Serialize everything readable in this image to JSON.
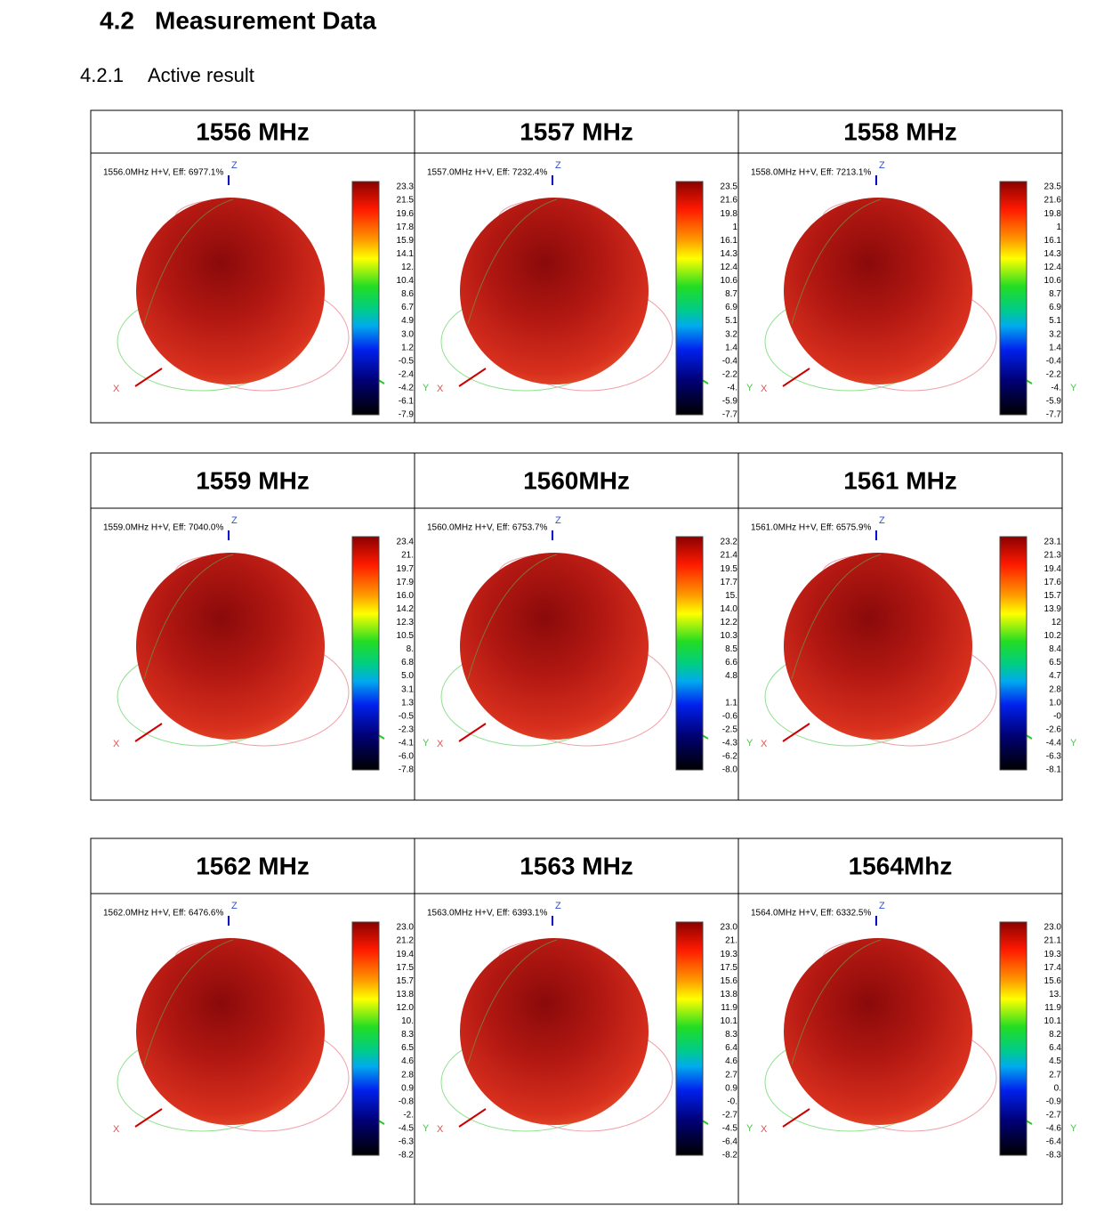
{
  "heading": {
    "number": "4.2",
    "title": "Measurement Data"
  },
  "subheading": {
    "number": "4.2.1",
    "title": "Active result"
  },
  "axis_labels": {
    "x": "X",
    "y": "Y",
    "z": "Z"
  },
  "tables": [
    {
      "panels": [
        {
          "header": "1556 MHz",
          "caption": "1556.0MHz H+V, Eff: 6977.1%",
          "scale": [
            "23.3",
            "21.5",
            "19.6",
            "17.8",
            "15.9",
            "14.1",
            "12.",
            "10.4",
            "8.6",
            "6.7",
            "4.9",
            "3.0",
            "1.2",
            "-0.5",
            "-2.4",
            "-4.2",
            "-6.1",
            "-7.9"
          ]
        },
        {
          "header": "1557 MHz",
          "caption": "1557.0MHz H+V, Eff: 7232.4%",
          "scale": [
            "23.5",
            "21.6",
            "19.8",
            "1",
            "16.1",
            "14.3",
            "12.4",
            "10.6",
            "8.7",
            "6.9",
            "5.1",
            "3.2",
            "1.4",
            "-0.4",
            "-2.2",
            "-4.",
            "-5.9",
            "-7.7"
          ]
        },
        {
          "header": "1558 MHz",
          "caption": "1558.0MHz H+V, Eff: 7213.1%",
          "scale": [
            "23.5",
            "21.6",
            "19.8",
            "1",
            "16.1",
            "14.3",
            "12.4",
            "10.6",
            "8.7",
            "6.9",
            "5.1",
            "3.2",
            "1.4",
            "-0.4",
            "-2.2",
            "-4.",
            "-5.9",
            "-7.7"
          ]
        }
      ]
    },
    {
      "panels": [
        {
          "header": "1559 MHz",
          "caption": "1559.0MHz H+V, Eff: 7040.0%",
          "scale": [
            "23.4",
            "21.",
            "19.7",
            "17.9",
            "16.0",
            "14.2",
            "12.3",
            "10.5",
            "8.",
            "6.8",
            "5.0",
            "3.1",
            "1.3",
            "-0.5",
            "-2.3",
            "-4.1",
            "-6.0",
            "-7.8"
          ]
        },
        {
          "header": "1560MHz",
          "caption": "1560.0MHz H+V, Eff: 6753.7%",
          "scale": [
            "23.2",
            "21.4",
            "19.5",
            "17.7",
            "15.",
            "14.0",
            "12.2",
            "10.3",
            "8.5",
            "6.6",
            "4.8",
            null,
            "1.1",
            "-0.6",
            "-2.5",
            "-4.3",
            "-6.2",
            "-8.0"
          ]
        },
        {
          "header": "1561 MHz",
          "caption": "1561.0MHz H+V, Eff: 6575.9%",
          "scale": [
            "23.1",
            "21.3",
            "19.4",
            "17.6",
            "15.7",
            "13.9",
            "12",
            "10.2",
            "8.4",
            "6.5",
            "4.7",
            "2.8",
            "1.0",
            "-0",
            "-2.6",
            "-4.4",
            "-6.3",
            "-8.1"
          ]
        }
      ]
    },
    {
      "panels": [
        {
          "header": "1562 MHz",
          "caption": "1562.0MHz H+V, Eff: 6476.6%",
          "scale": [
            "23.0",
            "21.2",
            "19.4",
            "17.5",
            "15.7",
            "13.8",
            "12.0",
            "10.",
            "8.3",
            "6.5",
            "4.6",
            "2.8",
            "0.9",
            "-0.8",
            "-2.",
            "-4.5",
            "-6.3",
            "-8.2"
          ]
        },
        {
          "header": "1563 MHz",
          "caption": "1563.0MHz H+V, Eff: 6393.1%",
          "scale": [
            "23.0",
            "21.",
            "19.3",
            "17.5",
            "15.6",
            "13.8",
            "11.9",
            "10.1",
            "8.3",
            "6.4",
            "4.6",
            "2.7",
            "0.9",
            "-0.",
            "-2.7",
            "-4.5",
            "-6.4",
            "-8.2"
          ]
        },
        {
          "header": "1564Mhz",
          "caption": "1564.0MHz H+V, Eff: 6332.5%",
          "scale": [
            "23.0",
            "21.1",
            "19.3",
            "17.4",
            "15.6",
            "13.",
            "11.9",
            "10.1",
            "8.2",
            "6.4",
            "4.5",
            "2.7",
            "0.",
            "-0.9",
            "-2.7",
            "-4.6",
            "-6.4",
            "-8.3"
          ]
        }
      ]
    }
  ]
}
